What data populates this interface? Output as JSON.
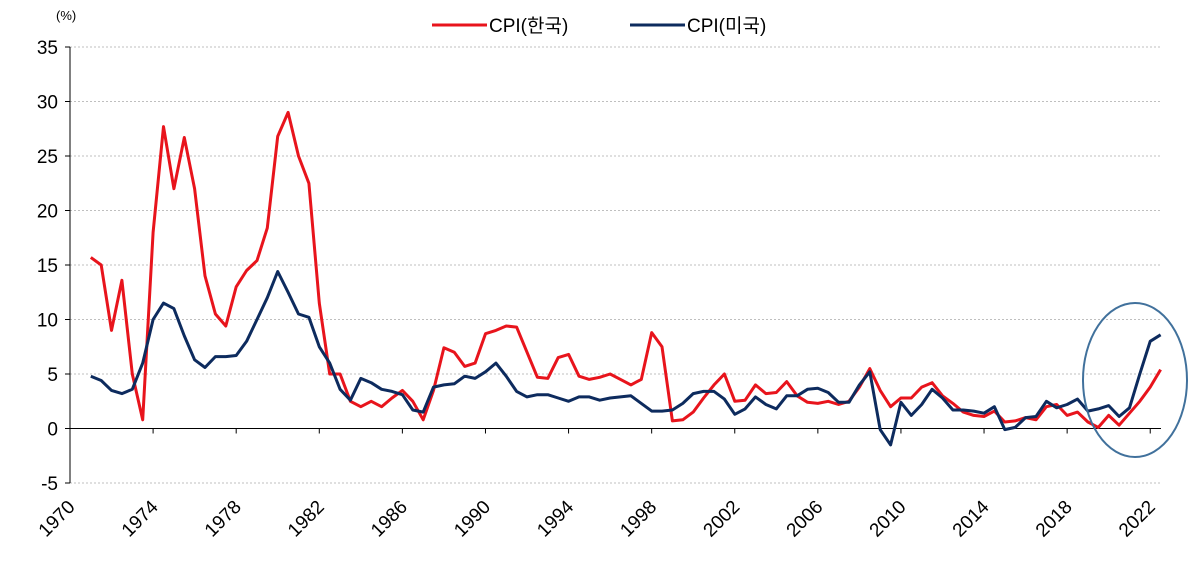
{
  "chart_data": {
    "type": "line",
    "y_label": "(%)",
    "x": [
      1971,
      1971.5,
      1972,
      1972.5,
      1973,
      1973.5,
      1974,
      1974.5,
      1975,
      1975.5,
      1976,
      1976.5,
      1977,
      1977.5,
      1978,
      1978.5,
      1979,
      1979.5,
      1980,
      1980.5,
      1981,
      1981.5,
      1982,
      1982.5,
      1983,
      1983.5,
      1984,
      1984.5,
      1985,
      1985.5,
      1986,
      1986.5,
      1987,
      1987.5,
      1988,
      1988.5,
      1989,
      1989.5,
      1990,
      1990.5,
      1991,
      1991.5,
      1992,
      1992.5,
      1993,
      1993.5,
      1994,
      1994.5,
      1995,
      1995.5,
      1996,
      1996.5,
      1997,
      1997.5,
      1998,
      1998.5,
      1999,
      1999.5,
      2000,
      2000.5,
      2001,
      2001.5,
      2002,
      2002.5,
      2003,
      2003.5,
      2004,
      2004.5,
      2005,
      2005.5,
      2006,
      2006.5,
      2007,
      2007.5,
      2008,
      2008.5,
      2009,
      2009.5,
      2010,
      2010.5,
      2011,
      2011.5,
      2012,
      2012.5,
      2013,
      2013.5,
      2014,
      2014.5,
      2015,
      2015.5,
      2016,
      2016.5,
      2017,
      2017.5,
      2018,
      2018.5,
      2019,
      2019.5,
      2020,
      2020.5,
      2021,
      2021.5,
      2022,
      2022.5
    ],
    "series": [
      {
        "name": "CPI(한국)",
        "color": "#e8141c",
        "values": [
          15.7,
          15,
          9,
          13.6,
          5,
          0.8,
          18,
          27.7,
          22,
          26.7,
          22,
          14,
          10.5,
          9.4,
          13,
          14.5,
          15.4,
          18.4,
          26.8,
          29,
          25,
          22.5,
          11.5,
          5,
          5,
          2.5,
          2,
          2.5,
          2,
          2.8,
          3.5,
          2.5,
          0.8,
          3.5,
          7.4,
          7,
          5.7,
          6,
          8.7,
          9,
          9.4,
          9.3,
          7,
          4.7,
          4.6,
          6.5,
          6.8,
          4.8,
          4.5,
          4.7,
          5,
          4.5,
          4,
          4.5,
          8.8,
          7.5,
          0.7,
          0.8,
          1.5,
          2.8,
          4,
          5,
          2.5,
          2.6,
          4,
          3.2,
          3.3,
          4.3,
          3,
          2.4,
          2.3,
          2.5,
          2.2,
          2.5,
          3.8,
          5.5,
          3.5,
          2,
          2.8,
          2.8,
          3.8,
          4.2,
          3,
          2.3,
          1.5,
          1.2,
          1.1,
          1.6,
          0.6,
          0.7,
          1,
          0.8,
          2,
          2.2,
          1.2,
          1.5,
          0.6,
          0.1,
          1.2,
          0.3,
          1.4,
          2.5,
          3.8,
          5.4
        ]
      },
      {
        "name": "CPI(미국)",
        "color": "#0d2b5e",
        "values": [
          4.8,
          4.4,
          3.5,
          3.2,
          3.6,
          6,
          10,
          11.5,
          11,
          8.5,
          6.3,
          5.6,
          6.6,
          6.6,
          6.7,
          8,
          10,
          12,
          14.4,
          12.5,
          10.5,
          10.2,
          7.5,
          6,
          3.6,
          2.6,
          4.6,
          4.2,
          3.6,
          3.4,
          3.1,
          1.7,
          1.5,
          3.8,
          4,
          4.1,
          4.8,
          4.6,
          5.2,
          6,
          4.8,
          3.4,
          2.9,
          3.1,
          3.1,
          2.8,
          2.5,
          2.9,
          2.9,
          2.6,
          2.8,
          2.9,
          3,
          2.3,
          1.6,
          1.6,
          1.7,
          2.3,
          3.2,
          3.4,
          3.4,
          2.7,
          1.3,
          1.8,
          2.9,
          2.2,
          1.8,
          3,
          3,
          3.6,
          3.7,
          3.3,
          2.4,
          2.4,
          4,
          5.2,
          -0.1,
          -1.5,
          2.4,
          1.2,
          2.2,
          3.6,
          2.8,
          1.7,
          1.7,
          1.6,
          1.4,
          2,
          -0.1,
          0.1,
          1,
          1.1,
          2.5,
          1.9,
          2.2,
          2.7,
          1.6,
          1.8,
          2.1,
          1.1,
          1.9,
          5,
          8,
          8.6
        ]
      }
    ],
    "xlim": [
      1970,
      2023
    ],
    "xticks": [
      1970,
      1974,
      1978,
      1982,
      1986,
      1990,
      1994,
      1998,
      2002,
      2006,
      2010,
      2014,
      2018,
      2022
    ],
    "ylim": [
      -5,
      35
    ],
    "yticks": [
      -5,
      0,
      5,
      10,
      15,
      20,
      25,
      30,
      35
    ],
    "grid": true,
    "legend": "top"
  }
}
